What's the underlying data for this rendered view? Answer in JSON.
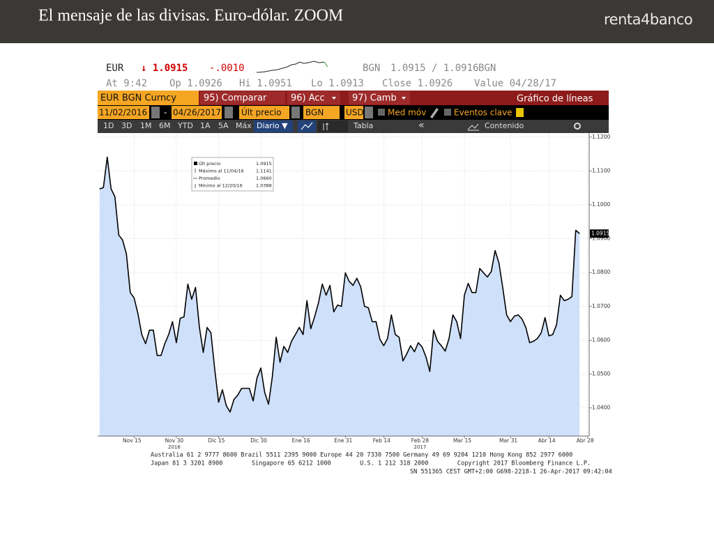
{
  "slide": {
    "title": "El mensaje de las divisas. Euro-dólar. ZOOM",
    "logo": "renta4banco"
  },
  "terminal": {
    "quote": {
      "ticker": "EUR",
      "last": "↓ 1.0915",
      "change": "-.0010",
      "source": "BGN",
      "bid_ask": "1.0915 / 1.0916",
      "source2": "BGN"
    },
    "stats": [
      "At 9:42",
      "Op 1.0926",
      "Hi 1.0951",
      "Lo 1.0913",
      "Close 1.0926",
      "Value 04/28/17"
    ],
    "toolbar": {
      "security": "EUR BGN Curncy",
      "compare": "95) Comparar",
      "actions": "96) Acc",
      "change": "97) Camb",
      "chart_type": "Gráfico de líneas"
    },
    "range": {
      "start": "11/02/2016",
      "separator": "-",
      "end": "04/26/2017",
      "field": "Últ precio",
      "source": "BGN",
      "currency": "USD",
      "moving_avg": "Med móv",
      "events": "Eventos clave"
    },
    "periods": [
      "1D",
      "3D",
      "1M",
      "6M",
      "YTD",
      "1A",
      "5A",
      "Máx"
    ],
    "frequency": "Diario ▼",
    "table": "Tabla",
    "back": "«",
    "content": "Contenido"
  },
  "chart_data": {
    "type": "area",
    "series": [
      {
        "name": "Últ precio",
        "color": "#000000",
        "fill": "#cfe0fb",
        "values": [
          1.1047,
          1.1051,
          1.1141,
          1.1047,
          1.1024,
          1.0911,
          1.0896,
          1.0855,
          1.0741,
          1.0725,
          1.0679,
          1.0617,
          1.059,
          1.063,
          1.063,
          1.0555,
          1.0555,
          1.059,
          1.0617,
          1.0655,
          1.0593,
          1.0665,
          1.0669,
          1.0766,
          1.0721,
          1.0756,
          1.0638,
          1.0564,
          1.0638,
          1.0622,
          1.0514,
          1.0417,
          1.0454,
          1.0407,
          1.0388,
          1.0425,
          1.0438,
          1.0458,
          1.0458,
          1.0458,
          1.0421,
          1.0489,
          1.0518,
          1.0446,
          1.0411,
          1.0493,
          1.0609,
          1.0535,
          1.0582,
          1.0564,
          1.0597,
          1.0617,
          1.0638,
          1.0617,
          1.0717,
          1.0634,
          1.0669,
          1.071,
          1.0766,
          1.0733,
          1.0762,
          1.0684,
          1.0704,
          1.07,
          1.0799,
          1.0774,
          1.0762,
          1.0783,
          1.0758,
          1.07,
          1.0696,
          1.0655,
          1.0655,
          1.0603,
          1.0584,
          1.0605,
          1.0675,
          1.0617,
          1.0609,
          1.0539,
          1.056,
          1.0584,
          1.0566,
          1.0593,
          1.058,
          1.0551,
          1.0508,
          1.063,
          1.0597,
          1.0584,
          1.0568,
          1.0605,
          1.0675,
          1.0655,
          1.0605,
          1.0733,
          1.0768,
          1.0741,
          1.0741,
          1.0812,
          1.0799,
          1.0787,
          1.0803,
          1.0865,
          1.0828,
          1.0754,
          1.0675,
          1.0655,
          1.0671,
          1.0675,
          1.0663,
          1.0638,
          1.0593,
          1.0597,
          1.0605,
          1.0622,
          1.0667,
          1.0613,
          1.0617,
          1.0646,
          1.0733,
          1.0717,
          1.0721,
          1.0729,
          1.0925,
          1.0915
        ]
      }
    ],
    "xlim": [
      -0.5,
      127.5
    ],
    "xticks": [
      {
        "value": 9,
        "label": "Nov 15"
      },
      {
        "value": 20,
        "label": "Nov 30"
      },
      {
        "value": 31,
        "label": "Dic 15"
      },
      {
        "value": 42,
        "label": "Dic 30"
      },
      {
        "value": 53,
        "label": "Ene 16"
      },
      {
        "value": 64,
        "label": "Ene 31"
      },
      {
        "value": 74,
        "label": "Feb 14"
      },
      {
        "value": 84,
        "label": "Feb 28"
      },
      {
        "value": 95,
        "label": "Mar 15"
      },
      {
        "value": 107,
        "label": "Mar 31"
      },
      {
        "value": 117,
        "label": "Abr 14"
      },
      {
        "value": 127,
        "label": "Abr 28"
      }
    ],
    "x_year_labels": [
      "2016",
      "2017"
    ],
    "ylim": [
      1.0317,
      1.1212
    ],
    "yticks": [
      {
        "value": 1.04,
        "label": "1.0400"
      },
      {
        "value": 1.05,
        "label": "1.0500"
      },
      {
        "value": 1.06,
        "label": "1.0600"
      },
      {
        "value": 1.07,
        "label": "1.0700"
      },
      {
        "value": 1.08,
        "label": "1.0800"
      },
      {
        "value": 1.09,
        "label": "1.0900"
      },
      {
        "value": 1.1,
        "label": "1.1000"
      },
      {
        "value": 1.11,
        "label": "1.1100"
      },
      {
        "value": 1.12,
        "label": "1.1200"
      }
    ],
    "grid": true,
    "last_value_label": "1.0915",
    "legend_stats": [
      {
        "label": "Máximo al 11/04/16",
        "value": "1.1141"
      },
      {
        "label": "Promedio",
        "value": "1.0660"
      },
      {
        "label": "Mínimo al 12/20/16",
        "value": "1.0388"
      }
    ]
  },
  "footer": [
    "Australia 61 2 9777 8600 Brazil 5511 2395 9000 Europe 44 20 7330 7500 Germany 49 69 9204 1210 Hong Kong 852 2977 6000",
    "Japan 81 3 3201 8900        Singapore 65 6212 1000        U.S. 1 212 318 2000        Copyright 2017 Bloomberg Finance L.P.",
    "SN 551365 CEST GMT+2:00 G698-2218-1 26-Apr-2017 09:42:04"
  ]
}
